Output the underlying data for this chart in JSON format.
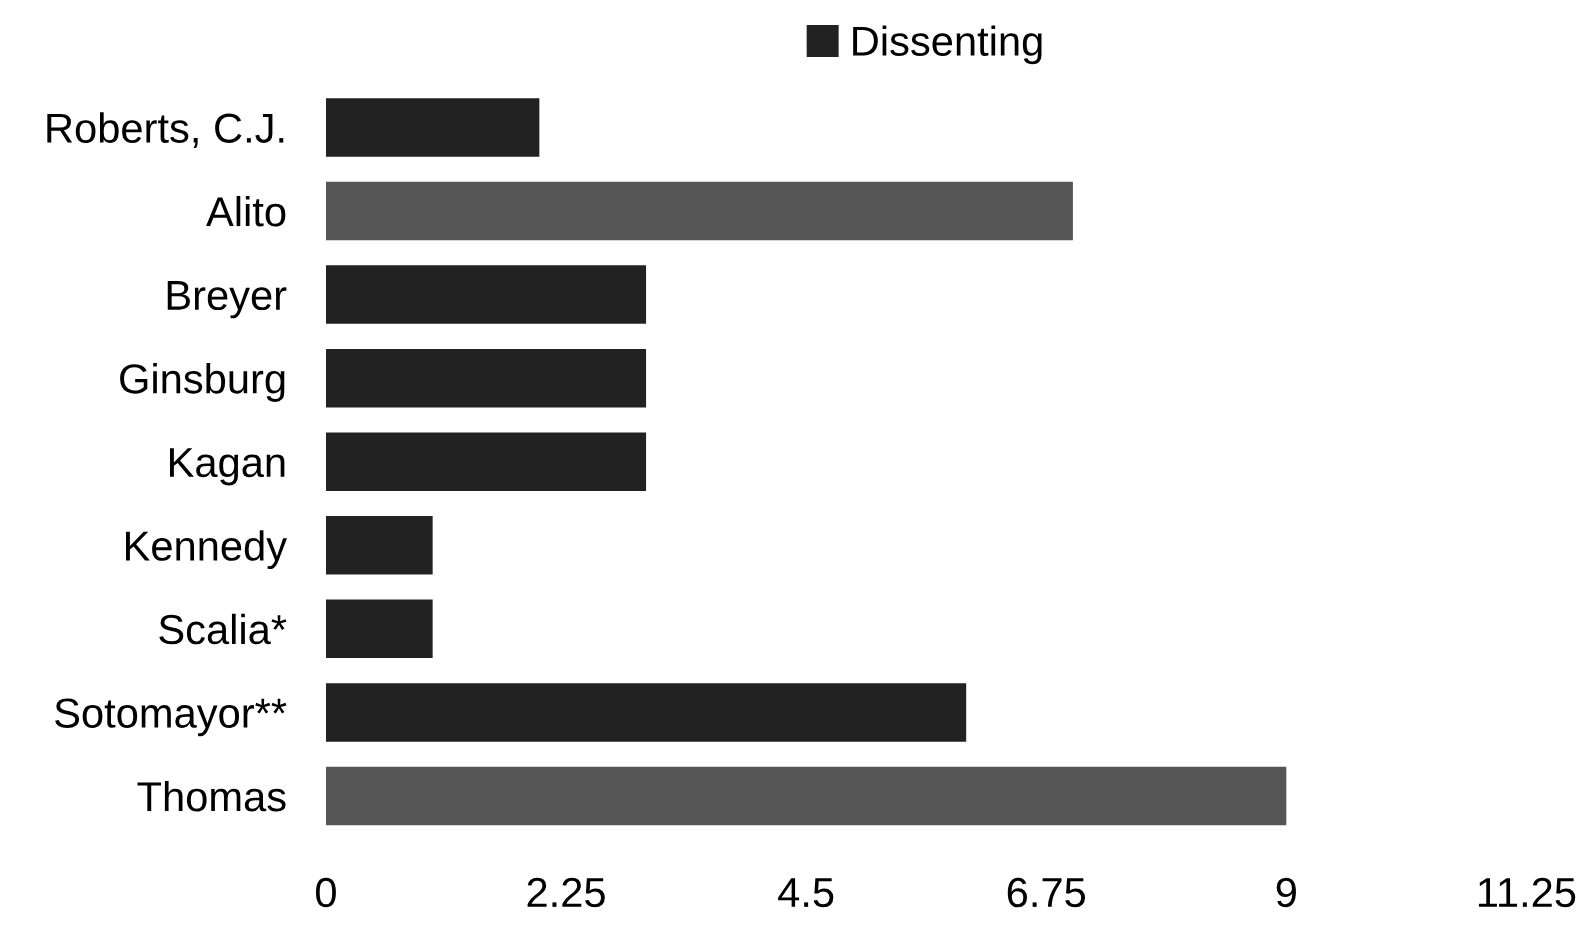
{
  "chart_data": {
    "type": "bar",
    "orientation": "horizontal",
    "categories": [
      "Roberts, C.J.",
      "Alito",
      "Breyer",
      "Ginsburg",
      "Kagan",
      "Kennedy",
      "Scalia*",
      "Sotomayor**",
      "Thomas"
    ],
    "series": [
      {
        "name": "Dissenting",
        "color": "#222222",
        "colors": [
          "#222222",
          "#555555",
          "#222222",
          "#222222",
          "#222222",
          "#222222",
          "#222222",
          "#222222",
          "#555555"
        ],
        "values": [
          2,
          7,
          3,
          3,
          3,
          1,
          1,
          6,
          9
        ]
      }
    ],
    "xlim": [
      0,
      11.25
    ],
    "xticks": [
      0,
      2.25,
      4.5,
      6.75,
      9,
      11.25
    ],
    "grid": false,
    "legend": "top"
  }
}
